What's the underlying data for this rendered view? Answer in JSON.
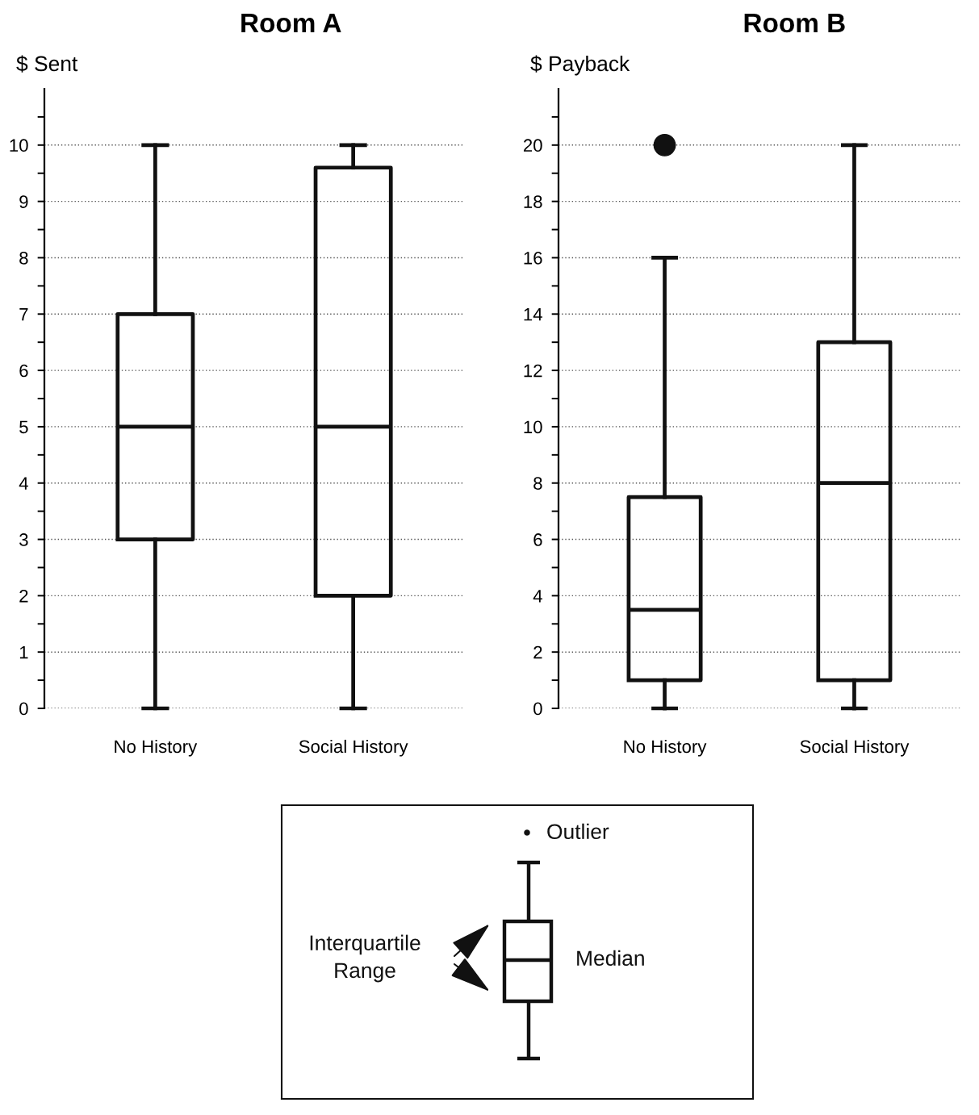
{
  "chart_data": [
    {
      "type": "box",
      "title": "Room A",
      "ylabel": "$ Sent",
      "categories": [
        "No History",
        "Social History"
      ],
      "series": [
        {
          "color": "#111111",
          "boxes": [
            {
              "low": 0,
              "q1": 3,
              "median": 5,
              "q3": 7,
              "high": 10
            },
            {
              "low": 0,
              "q1": 2,
              "median": 5,
              "q3": 9.6,
              "high": 10
            }
          ]
        }
      ],
      "ylim": [
        0,
        11
      ],
      "yticks": [
        0,
        {
          "value": 0.5,
          "label": null
        },
        1,
        {
          "value": 1.5,
          "label": null
        },
        2,
        {
          "value": 2.5,
          "label": null
        },
        3,
        {
          "value": 3.5,
          "label": null
        },
        4,
        {
          "value": 4.5,
          "label": null
        },
        5,
        {
          "value": 5.5,
          "label": null
        },
        6,
        {
          "value": 6.5,
          "label": null
        },
        7,
        {
          "value": 7.5,
          "label": null
        },
        8,
        {
          "value": 8.5,
          "label": null
        },
        9,
        {
          "value": 9.5,
          "label": null
        },
        10,
        {
          "value": 10.5,
          "label": null
        }
      ],
      "grid": "y"
    },
    {
      "type": "box",
      "title": "Room B",
      "ylabel": "$ Payback",
      "categories": [
        "No History",
        "Social History"
      ],
      "series": [
        {
          "color": "#111111",
          "boxes": [
            {
              "low": 0,
              "q1": 1,
              "median": 3.5,
              "q3": 7.5,
              "high": 16,
              "outliers": [
                20
              ]
            },
            {
              "low": 0,
              "q1": 1,
              "median": 8,
              "q3": 13,
              "high": 20
            }
          ]
        }
      ],
      "ylim": [
        0,
        22
      ],
      "yticks": [
        0,
        {
          "value": 1,
          "label": null
        },
        2,
        {
          "value": 3,
          "label": null
        },
        4,
        {
          "value": 5,
          "label": null
        },
        6,
        {
          "value": 7,
          "label": null
        },
        8,
        {
          "value": 9,
          "label": null
        },
        10,
        {
          "value": 11,
          "label": null
        },
        12,
        {
          "value": 13,
          "label": null
        },
        14,
        {
          "value": 15,
          "label": null
        },
        16,
        {
          "value": 17,
          "label": null
        },
        18,
        {
          "value": 19,
          "label": null
        },
        20,
        {
          "value": 21,
          "label": null
        }
      ],
      "grid": "y"
    },
    {
      "type": "other",
      "annotations": [
        "Outlier",
        "Interquartile Range",
        "Median"
      ]
    }
  ]
}
